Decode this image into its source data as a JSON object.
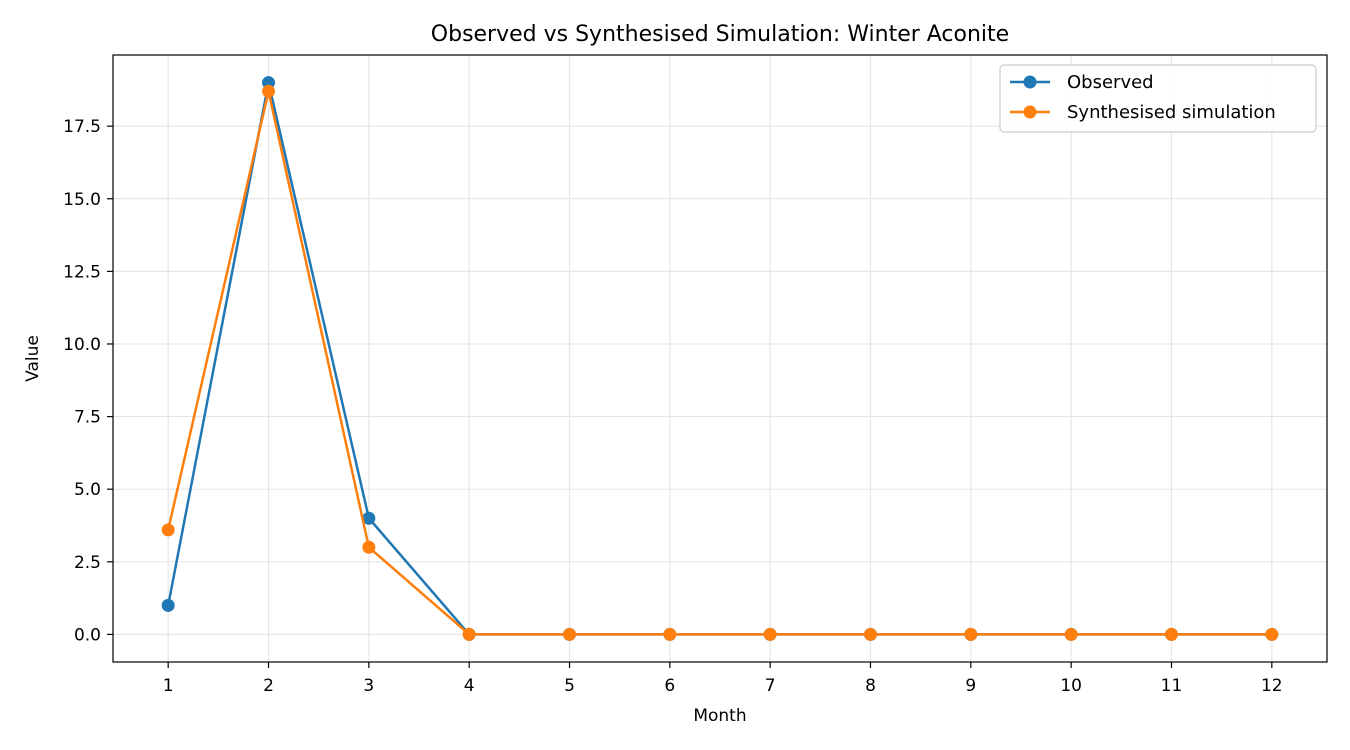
{
  "chart_data": {
    "type": "line",
    "title": "Observed vs Synthesised Simulation: Winter Aconite",
    "xlabel": "Month",
    "ylabel": "Value",
    "x": [
      1,
      2,
      3,
      4,
      5,
      6,
      7,
      8,
      9,
      10,
      11,
      12
    ],
    "xlim": [
      0.45,
      12.55
    ],
    "ylim": [
      -0.95,
      19.95
    ],
    "yticks": [
      "0.0",
      "2.5",
      "5.0",
      "7.5",
      "10.0",
      "12.5",
      "15.0",
      "17.5"
    ],
    "ytick_values": [
      0,
      2.5,
      5,
      7.5,
      10,
      12.5,
      15,
      17.5
    ],
    "grid": true,
    "legend_position": "top-right",
    "series": [
      {
        "name": "Observed",
        "color": "#1f77b4",
        "values": [
          1,
          19,
          4,
          0,
          0,
          0,
          0,
          0,
          0,
          0,
          0,
          0
        ]
      },
      {
        "name": "Synthesised simulation",
        "color": "#ff7f0e",
        "values": [
          3.6,
          18.7,
          3.0,
          0,
          0,
          0,
          0,
          0,
          0,
          0,
          0,
          0
        ]
      }
    ]
  }
}
